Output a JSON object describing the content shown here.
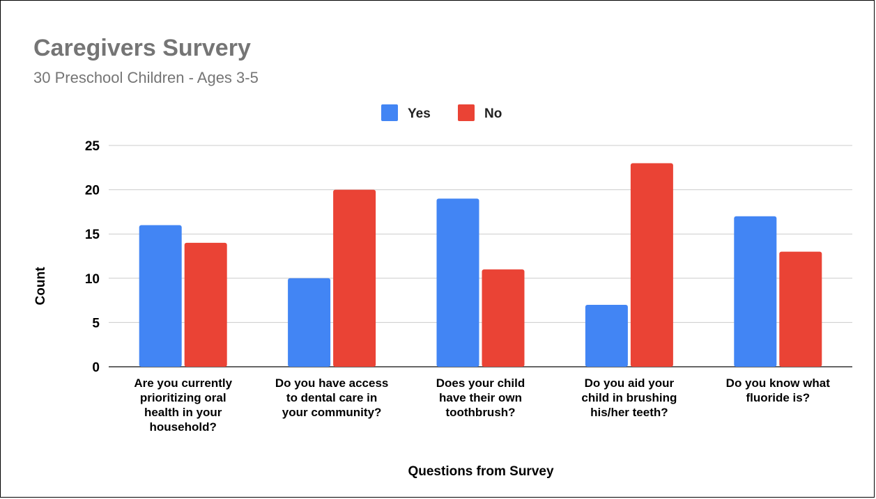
{
  "chart_data": {
    "type": "bar",
    "title": "Caregivers Survery",
    "subtitle": "30 Preschool Children - Ages 3-5",
    "xlabel": "Questions from Survey",
    "ylabel": "Count",
    "ylim": [
      0,
      25
    ],
    "yticks": [
      0,
      5,
      10,
      15,
      20,
      25
    ],
    "grid": true,
    "legend_position": "top",
    "categories": [
      [
        "Are you currently",
        "prioritizing oral",
        "health in your",
        "household?"
      ],
      [
        "Do you have access",
        "to dental care in",
        "your community?"
      ],
      [
        "Does your child",
        "have their own",
        "toothbrush?"
      ],
      [
        "Do you aid your",
        "child in brushing",
        "his/her teeth?"
      ],
      [
        "Do you know what",
        "fluoride is?"
      ]
    ],
    "series": [
      {
        "name": "Yes",
        "color": "#4285f4",
        "values": [
          16,
          10,
          19,
          7,
          17
        ]
      },
      {
        "name": "No",
        "color": "#ea4335",
        "values": [
          14,
          20,
          11,
          23,
          13
        ]
      }
    ]
  }
}
